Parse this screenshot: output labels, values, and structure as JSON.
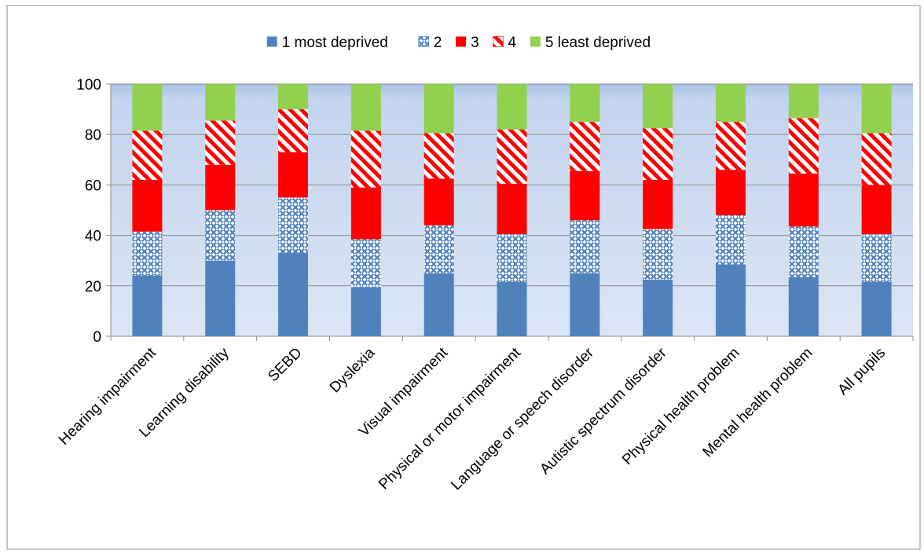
{
  "chart_data": {
    "type": "bar",
    "stacked": true,
    "categories": [
      "Hearing impairment",
      "Learning disability",
      "SEBD",
      "Dyslexia",
      "Visual impairment",
      "Physical or motor impairment",
      "Language or speech disorder",
      "Autistic spectrum disorder",
      "Physical health problem",
      "Mental health problem",
      "All pupils"
    ],
    "series": [
      {
        "name": "1 most deprived",
        "color": "#4f81bd",
        "pattern": "solid",
        "values": [
          24,
          30,
          33,
          19.5,
          25,
          21.5,
          25,
          22.5,
          28.5,
          23.5,
          21.5
        ]
      },
      {
        "name": "2",
        "color": "#4f81bd",
        "pattern": "crosshatch",
        "values": [
          17.5,
          20,
          22,
          19,
          19,
          19,
          21,
          20,
          19.5,
          20,
          19
        ]
      },
      {
        "name": "3",
        "color": "#ff0000",
        "pattern": "solid",
        "values": [
          20.5,
          18,
          18,
          20.5,
          18.5,
          20,
          19.5,
          19.5,
          18,
          21,
          19.5
        ]
      },
      {
        "name": "4",
        "color": "#ff0000",
        "pattern": "diagonal-stripes",
        "values": [
          19.5,
          17.5,
          17,
          22.5,
          18,
          21.5,
          19.5,
          20.5,
          19,
          22,
          20.5
        ]
      },
      {
        "name": "5 least deprived",
        "color": "#92d050",
        "pattern": "solid",
        "values": [
          18.5,
          14.5,
          10,
          18.5,
          19.5,
          18,
          15,
          17.5,
          15,
          13.5,
          19.5
        ]
      }
    ],
    "title": "",
    "xlabel": "",
    "ylabel": "",
    "ylim": [
      0,
      100
    ],
    "yticks": [
      0,
      20,
      40,
      60,
      80,
      100
    ],
    "grid": true,
    "legend_position": "top"
  }
}
